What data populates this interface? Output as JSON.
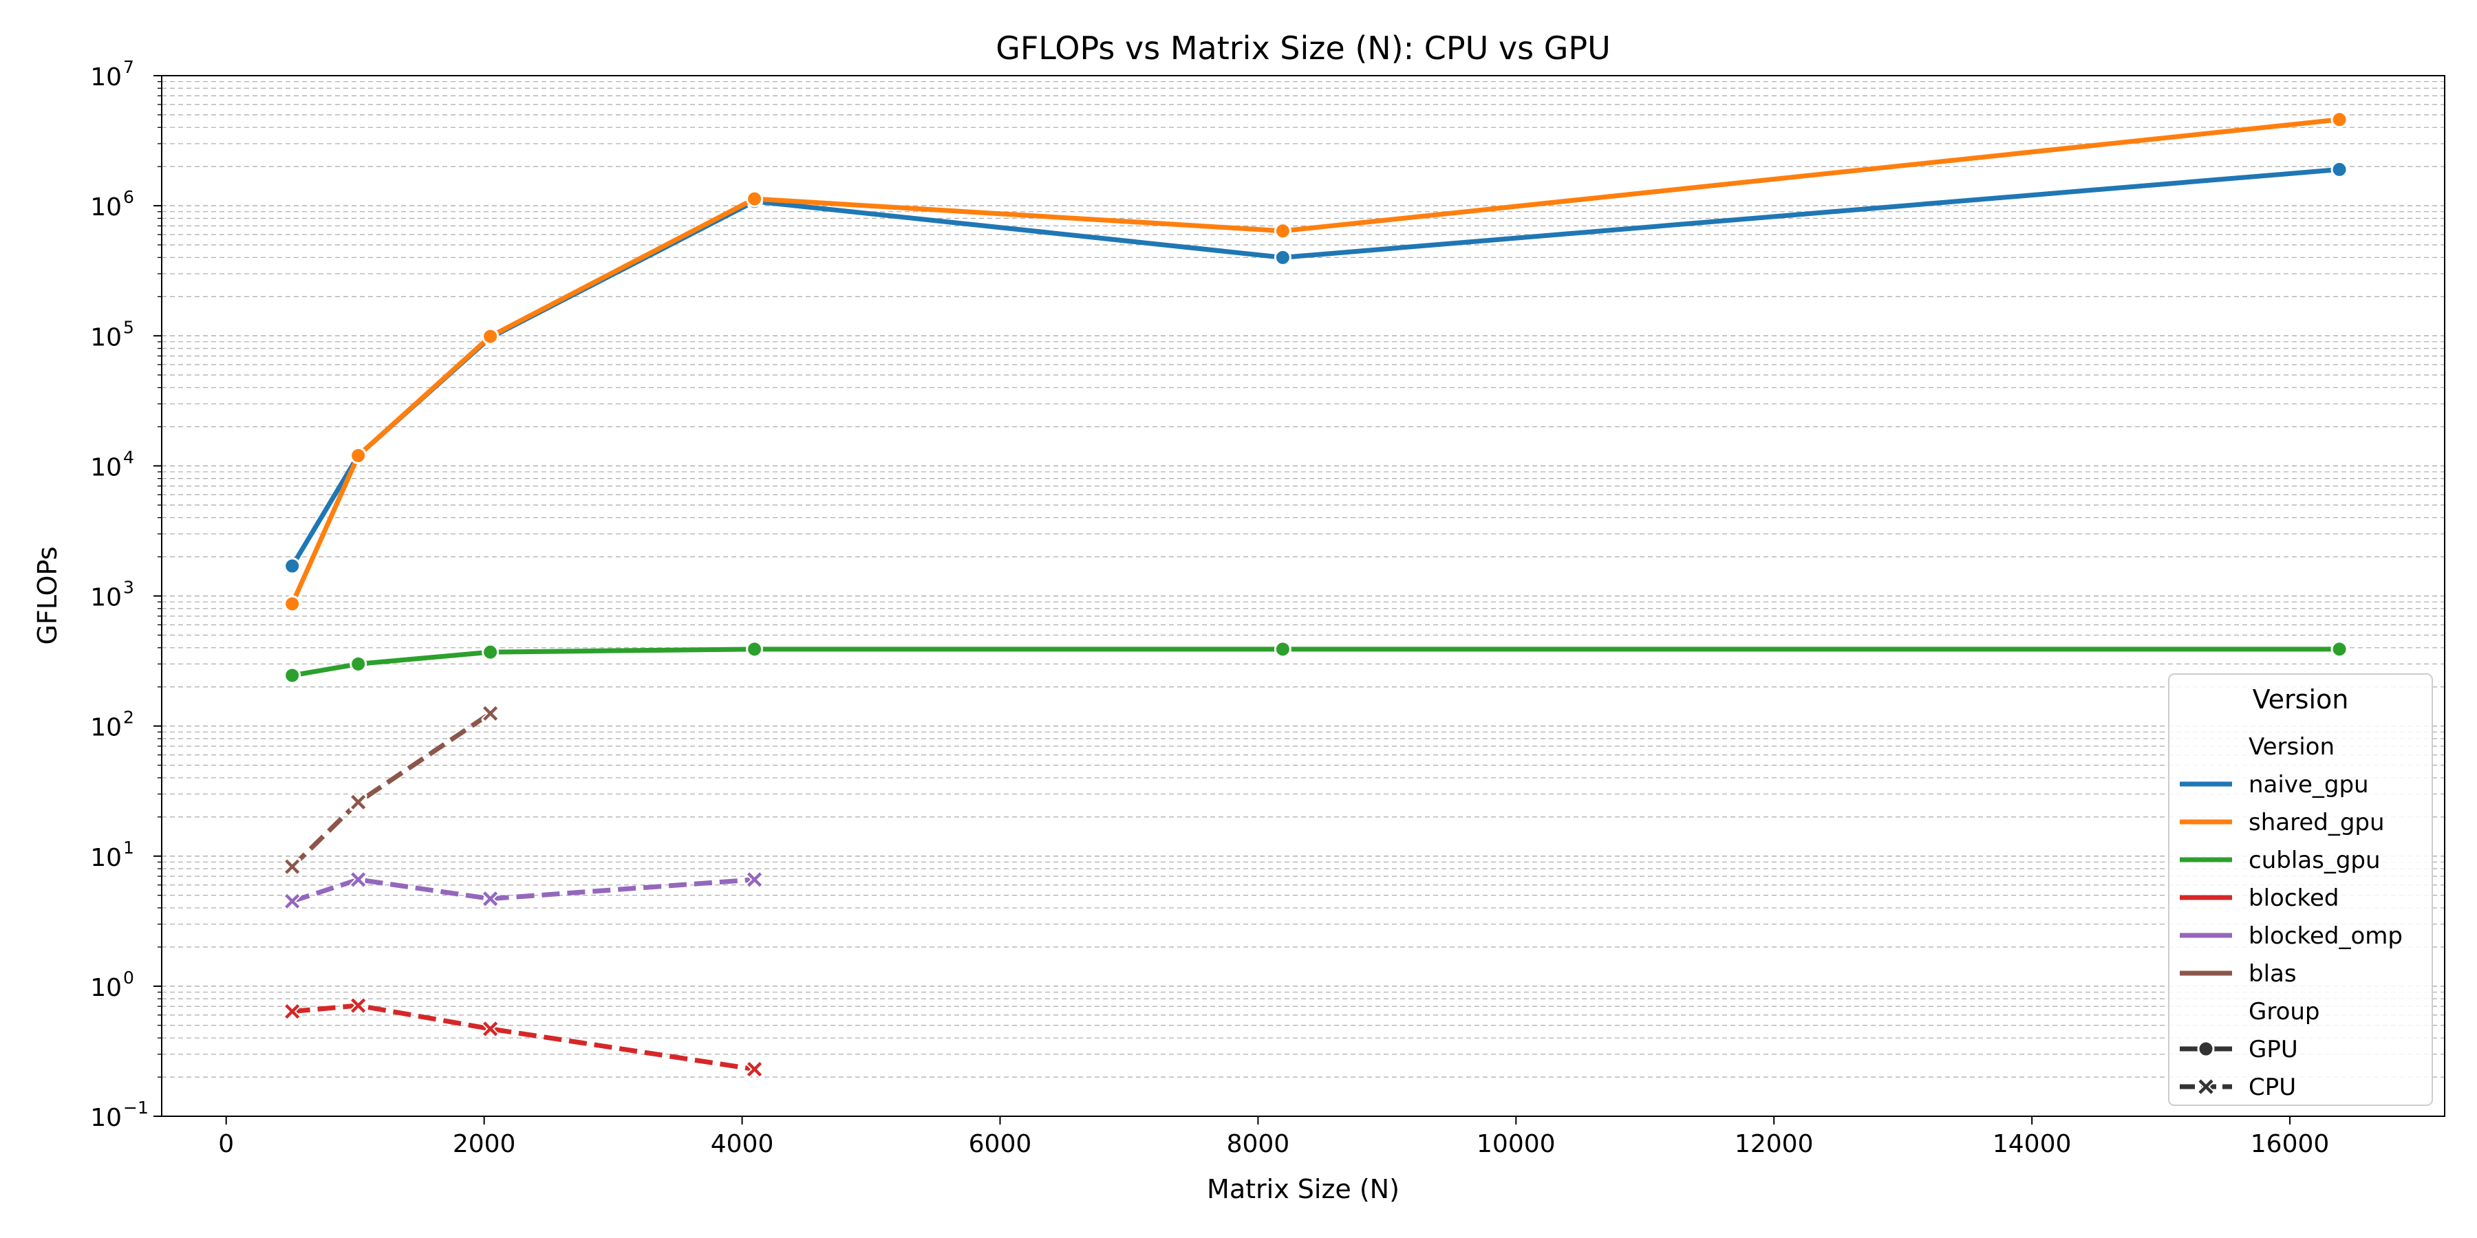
{
  "chart_data": {
    "type": "line",
    "title": "GFLOPs vs Matrix Size (N): CPU vs GPU",
    "xlabel": "Matrix Size (N)",
    "ylabel": "GFLOPs",
    "xlim": [
      -500,
      17200
    ],
    "xticks": [
      0,
      2000,
      4000,
      6000,
      8000,
      10000,
      12000,
      14000,
      16000
    ],
    "xtick_labels": [
      "0",
      "2000",
      "4000",
      "6000",
      "8000",
      "10000",
      "12000",
      "14000",
      "16000"
    ],
    "yscale": "log",
    "ylim": [
      0.1,
      10000000
    ],
    "ytick_exponents": [
      "−1",
      "0",
      "1",
      "2",
      "3",
      "4",
      "5",
      "6",
      "7"
    ],
    "ytick_base": "10",
    "grid": "y-major-and-minor-dashed",
    "legend": {
      "placement": "lower-right",
      "title": "Version",
      "hue_header": "Version",
      "style_header": "Group",
      "style_entries": [
        {
          "label": "GPU",
          "marker": "circle",
          "dash": false
        },
        {
          "label": "CPU",
          "marker": "x",
          "dash": true
        }
      ]
    },
    "series": [
      {
        "name": "naive_gpu",
        "group": "GPU",
        "color": "#1f77b4",
        "x": [
          512,
          1024,
          2048,
          4096,
          8192,
          16384
        ],
        "y": [
          1700,
          12000,
          97000,
          1080000,
          400000,
          1900000
        ]
      },
      {
        "name": "shared_gpu",
        "group": "GPU",
        "color": "#ff7f0e",
        "x": [
          512,
          1024,
          2048,
          4096,
          8192,
          16384
        ],
        "y": [
          870,
          12000,
          99000,
          1130000,
          640000,
          4600000
        ]
      },
      {
        "name": "cublas_gpu",
        "group": "GPU",
        "color": "#2ca02c",
        "x": [
          512,
          1024,
          2048,
          4096,
          8192,
          16384
        ],
        "y": [
          245,
          300,
          370,
          390,
          390,
          390
        ]
      },
      {
        "name": "blocked",
        "group": "CPU",
        "color": "#d62728",
        "x": [
          512,
          1024,
          2048,
          4096
        ],
        "y": [
          0.64,
          0.71,
          0.47,
          0.23
        ]
      },
      {
        "name": "blocked_omp",
        "group": "CPU",
        "color": "#9467bd",
        "x": [
          512,
          1024,
          2048,
          4096
        ],
        "y": [
          4.5,
          6.6,
          4.7,
          6.6
        ]
      },
      {
        "name": "blas",
        "group": "CPU",
        "color": "#8c564b",
        "x": [
          512,
          1024,
          2048
        ],
        "y": [
          8.3,
          26,
          125
        ]
      }
    ]
  }
}
